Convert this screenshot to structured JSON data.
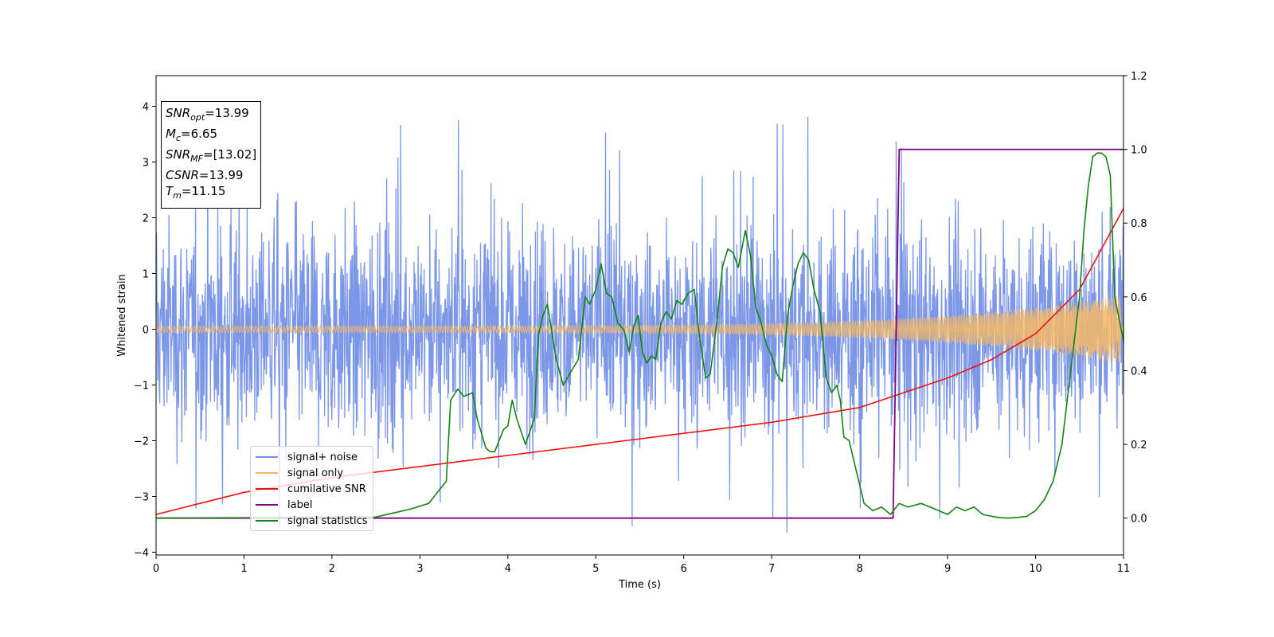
{
  "chart_data": {
    "type": "line",
    "xlabel": "Time (s)",
    "ylabel": "Whitened strain",
    "xlim": [
      0,
      11
    ],
    "ylim_left": [
      -4.05,
      4.55
    ],
    "ylim_right": [
      -0.1,
      1.2
    ],
    "x_ticks": [
      "0",
      "1",
      "2",
      "3",
      "4",
      "5",
      "6",
      "7",
      "8",
      "9",
      "10",
      "11"
    ],
    "y_left_ticks": [
      "−4",
      "−3",
      "−2",
      "−1",
      "0",
      "1",
      "2",
      "3",
      "4"
    ],
    "y_right_ticks": [
      "0.0",
      "0.2",
      "0.4",
      "0.6",
      "0.8",
      "1.0",
      "1.2"
    ],
    "annotation": {
      "snr_opt": {
        "sym": "SNR",
        "sub": "opt",
        "val": "=13.99"
      },
      "mc": {
        "sym": "M",
        "sub": "c",
        "val": "=6.65"
      },
      "snr_mf": {
        "sym": "SNR",
        "sub": "MF",
        "val": "=[13.02]"
      },
      "csnr": {
        "sym": "CSNR",
        "val": "=13.99"
      },
      "tm": {
        "sym": "T",
        "sub": "m",
        "val": "=11.15"
      }
    },
    "series": [
      {
        "name": "signal+ noise",
        "color": "#7591e6",
        "axis": "left",
        "amplitude_envelope": [
          -2.3,
          2.4
        ],
        "spike_extremes": [
          -3.65,
          4.15
        ]
      },
      {
        "name": "signal only",
        "color": "#f6b865",
        "axis": "left",
        "envelope_start": 0.06,
        "envelope_end": 0.62
      },
      {
        "name": "cumilative SNR",
        "color": "#ee1111",
        "axis": "right",
        "x": [
          0,
          1,
          2,
          3,
          4,
          5,
          6,
          7,
          8,
          8.5,
          9,
          9.5,
          10,
          10.5,
          11
        ],
        "y": [
          0.01,
          0.07,
          0.11,
          0.14,
          0.17,
          0.2,
          0.23,
          0.26,
          0.3,
          0.34,
          0.38,
          0.43,
          0.5,
          0.62,
          0.84
        ]
      },
      {
        "name": "label",
        "color": "#800080",
        "axis": "right",
        "x": [
          0,
          8.38,
          8.45,
          11
        ],
        "y": [
          0,
          0,
          1,
          1
        ]
      },
      {
        "name": "signal statistics",
        "color": "#138413",
        "axis": "right",
        "x": [
          0,
          2.5,
          2.9,
          3.1,
          3.3,
          3.35,
          3.43,
          3.5,
          3.6,
          3.65,
          3.75,
          3.8,
          3.85,
          3.95,
          4.0,
          4.05,
          4.1,
          4.2,
          4.3,
          4.35,
          4.4,
          4.45,
          4.55,
          4.63,
          4.7,
          4.8,
          4.88,
          4.93,
          5.0,
          5.06,
          5.12,
          5.18,
          5.25,
          5.32,
          5.38,
          5.43,
          5.48,
          5.53,
          5.58,
          5.63,
          5.68,
          5.74,
          5.8,
          5.86,
          5.92,
          5.98,
          6.05,
          6.12,
          6.18,
          6.25,
          6.3,
          6.37,
          6.44,
          6.5,
          6.56,
          6.62,
          6.7,
          6.76,
          6.82,
          6.88,
          6.94,
          7.0,
          7.06,
          7.12,
          7.18,
          7.24,
          7.3,
          7.36,
          7.42,
          7.48,
          7.55,
          7.62,
          7.68,
          7.74,
          7.78,
          7.82,
          7.88,
          7.95,
          8.05,
          8.15,
          8.25,
          8.35,
          8.45,
          8.55,
          8.7,
          8.8,
          8.9,
          9.0,
          9.1,
          9.2,
          9.3,
          9.4,
          9.5,
          9.6,
          9.7,
          9.8,
          9.9,
          10.0,
          10.1,
          10.2,
          10.3,
          10.4,
          10.5,
          10.55,
          10.6,
          10.65,
          10.7,
          10.75,
          10.8,
          10.85,
          10.9,
          11.0
        ],
        "y": [
          0.0,
          0.003,
          0.025,
          0.04,
          0.1,
          0.32,
          0.35,
          0.33,
          0.34,
          0.27,
          0.19,
          0.18,
          0.18,
          0.24,
          0.25,
          0.32,
          0.27,
          0.2,
          0.27,
          0.5,
          0.55,
          0.58,
          0.43,
          0.36,
          0.39,
          0.43,
          0.6,
          0.58,
          0.62,
          0.69,
          0.61,
          0.6,
          0.53,
          0.51,
          0.45,
          0.52,
          0.55,
          0.45,
          0.42,
          0.44,
          0.43,
          0.53,
          0.56,
          0.54,
          0.59,
          0.58,
          0.61,
          0.62,
          0.49,
          0.38,
          0.39,
          0.52,
          0.68,
          0.73,
          0.72,
          0.68,
          0.78,
          0.71,
          0.57,
          0.53,
          0.47,
          0.44,
          0.39,
          0.37,
          0.55,
          0.63,
          0.69,
          0.72,
          0.7,
          0.62,
          0.56,
          0.38,
          0.34,
          0.36,
          0.32,
          0.22,
          0.21,
          0.14,
          0.04,
          0.02,
          0.03,
          0.01,
          0.04,
          0.03,
          0.04,
          0.03,
          0.02,
          0.01,
          0.03,
          0.02,
          0.03,
          0.01,
          0.005,
          0.001,
          0.0,
          0.002,
          0.005,
          0.02,
          0.05,
          0.1,
          0.2,
          0.4,
          0.6,
          0.78,
          0.9,
          0.98,
          0.99,
          0.99,
          0.98,
          0.93,
          0.6,
          0.48
        ]
      }
    ],
    "legend_position": "lower-left"
  }
}
